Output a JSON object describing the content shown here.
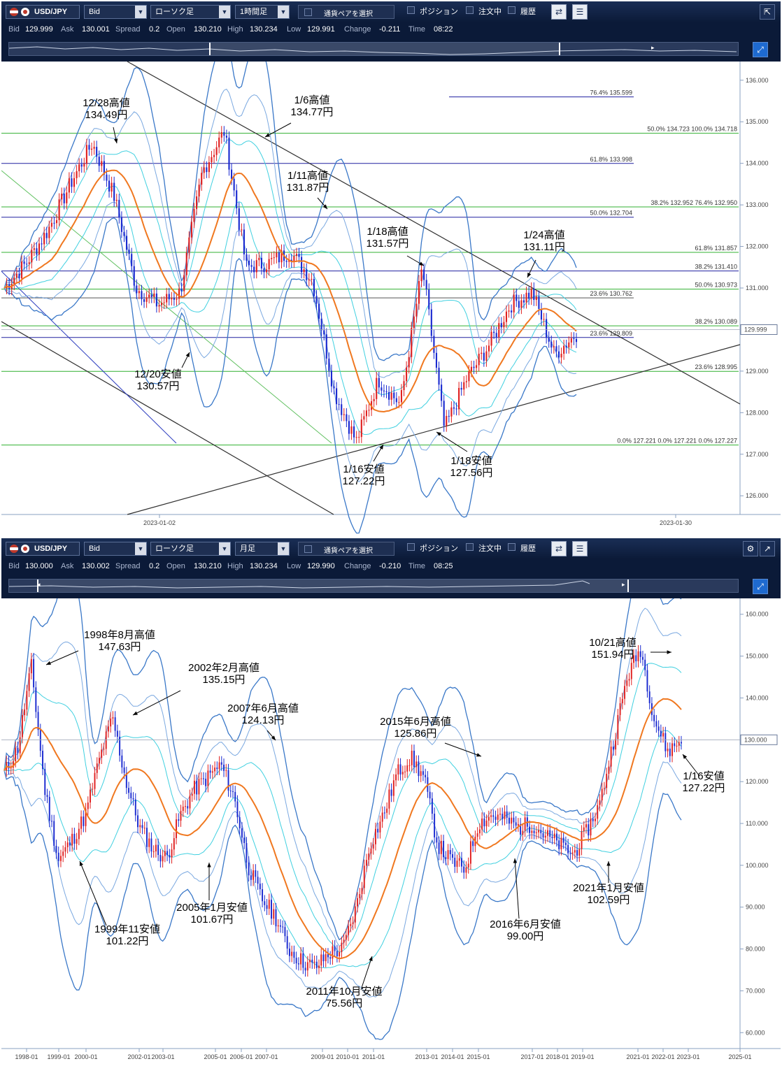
{
  "top": {
    "pair": "USD/JPY",
    "price_type": "Bid",
    "chart_type": "ローソク足",
    "timeframe": "1時間足",
    "select_pair": "通貨ペアを選択",
    "position": "ポジション",
    "orders": "注文中",
    "history": "履歴",
    "quote": {
      "bid_label": "Bid",
      "bid": "129.999",
      "ask_label": "Ask",
      "ask": "130.001",
      "spread_label": "Spread",
      "spread": "0.2",
      "open_label": "Open",
      "open": "130.210",
      "high_label": "High",
      "high": "130.234",
      "low_label": "Low",
      "low": "129.991",
      "change_label": "Change",
      "change": "-0.211",
      "time_label": "Time",
      "time": "08:22"
    },
    "y_ticks": [
      "136.000",
      "135.000",
      "134.000",
      "133.000",
      "132.000",
      "131.000",
      "130.000",
      "129.000",
      "128.000",
      "127.000",
      "126.000"
    ],
    "x_ticks": [
      "2023-01-02",
      "2023-01-30"
    ],
    "current_price": "129.999",
    "fib_labels": [
      "76.4%  135.599",
      "50.0%  134.723  100.0%  134.718",
      "61.8%  133.998",
      "38.2%  132.952   76.4%  132.950",
      "50.0%  132.704",
      "61.8%  131.857",
      "38.2%  131.410",
      "50.0%  130.973",
      "23.6%  130.762",
      "38.2%  130.089",
      "23.6%  129.809",
      "23.6%  128.995",
      "0.0%  127.221   0.0%  127.221     0.0%  127.227"
    ],
    "annotations": [
      {
        "l1": "12/28高値",
        "l2": "134.49円"
      },
      {
        "l1": "1/6高値",
        "l2": "134.77円"
      },
      {
        "l1": "1/11高値",
        "l2": "131.87円"
      },
      {
        "l1": "1/18高値",
        "l2": "131.57円"
      },
      {
        "l1": "1/24高値",
        "l2": "131.11円"
      },
      {
        "l1": "12/20安値",
        "l2": "130.57円"
      },
      {
        "l1": "1/16安値",
        "l2": "127.22円"
      },
      {
        "l1": "1/18安値",
        "l2": "127.56円"
      }
    ]
  },
  "bottom": {
    "pair": "USD/JPY",
    "price_type": "Bid",
    "chart_type": "ローソク足",
    "timeframe": "月足",
    "select_pair": "通貨ペアを選択",
    "position": "ポジション",
    "orders": "注文中",
    "history": "履歴",
    "quote": {
      "bid_label": "Bid",
      "bid": "130.000",
      "ask_label": "Ask",
      "ask": "130.002",
      "spread_label": "Spread",
      "spread": "0.2",
      "open_label": "Open",
      "open": "130.210",
      "high_label": "High",
      "high": "130.234",
      "low_label": "Low",
      "low": "129.990",
      "change_label": "Change",
      "change": "-0.210",
      "time_label": "Time",
      "time": "08:25"
    },
    "y_ticks": [
      "160.000",
      "150.000",
      "140.000",
      "130.000",
      "120.000",
      "110.000",
      "100.000",
      "90.000",
      "80.000",
      "70.000",
      "60.000"
    ],
    "x_ticks": [
      "1998-01",
      "1999-01",
      "2000-01",
      "2002-01",
      "2003-01",
      "2005-01",
      "2006-01",
      "2007-01",
      "2009-01",
      "2010-01",
      "2011-01",
      "2013-01",
      "2014-01",
      "2015-01",
      "2017-01",
      "2018-01",
      "2019-01",
      "2021-01",
      "2022-01",
      "2023-01",
      "2025-01"
    ],
    "current_price": "130.000",
    "annotations": [
      {
        "l1": "1998年8月高値",
        "l2": "147.63円"
      },
      {
        "l1": "2002年2月高値",
        "l2": "135.15円"
      },
      {
        "l1": "2007年6月高値",
        "l2": "124.13円"
      },
      {
        "l1": "2015年6月高値",
        "l2": "125.86円"
      },
      {
        "l1": "10/21高値",
        "l2": "151.94円"
      },
      {
        "l1": "1999年11安値",
        "l2": "101.22円"
      },
      {
        "l1": "2005年1月安値",
        "l2": "101.67円"
      },
      {
        "l1": "2011年10月安値",
        "l2": "75.56円"
      },
      {
        "l1": "2016年6月安値",
        "l2": "99.00円"
      },
      {
        "l1": "2021年1月安値",
        "l2": "102.59円"
      },
      {
        "l1": "1/16安値",
        "l2": "127.22円"
      }
    ]
  },
  "colors": {
    "bg_dark": "#0b1a38",
    "up": "#e02020",
    "down": "#1a2ad0",
    "ma": "#f07820",
    "band_outer": "#3a78c8",
    "band_inner": "#40d0e0",
    "fib_green": "#30b030",
    "fib_blue": "#2020a0"
  }
}
